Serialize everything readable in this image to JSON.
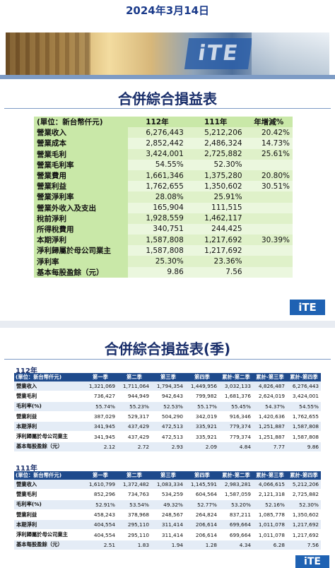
{
  "date": "2024年3月14日",
  "banner": {
    "logo_text": "iTE"
  },
  "annual": {
    "title": "合併綜合損益表",
    "header": [
      "(單位：新台幣仟元)",
      "112年",
      "111年",
      "年增減%"
    ],
    "rows": [
      [
        "營業收入",
        "6,276,443",
        "5,212,206",
        "20.42%"
      ],
      [
        "營業成本",
        "2,852,442",
        "2,486,324",
        "14.73%"
      ],
      [
        "營業毛利",
        "3,424,001",
        "2,725,882",
        "25.61%"
      ],
      [
        "營業毛利率",
        "54.55%",
        "52.30%",
        ""
      ],
      [
        "營業費用",
        "1,661,346",
        "1,375,280",
        "20.80%"
      ],
      [
        "營業利益",
        "1,762,655",
        "1,350,602",
        "30.51%"
      ],
      [
        "營業淨利率",
        "28.08%",
        "25.91%",
        ""
      ],
      [
        "營業外收入及支出",
        "165,904",
        "111,515",
        ""
      ],
      [
        "稅前淨利",
        "1,928,559",
        "1,462,117",
        ""
      ],
      [
        "所得稅費用",
        "340,751",
        "244,425",
        ""
      ],
      [
        "本期淨利",
        "1,587,808",
        "1,217,692",
        "30.39%"
      ],
      [
        "淨利歸屬於母公司業主",
        "1,587,808",
        "1,217,692",
        ""
      ],
      [
        "淨利率",
        "25.30%",
        "23.36%",
        ""
      ],
      [
        "基本每股盈餘（元）",
        "9.86",
        "7.56",
        ""
      ]
    ]
  },
  "logo_small": "iTE",
  "quarterly": {
    "title": "合併綜合損益表(季)",
    "header": [
      "(單位：新台幣仟元)",
      "第一季",
      "第二季",
      "第三季",
      "第四季",
      "累計-第二季",
      "累計-第三季",
      "累計-第四季"
    ],
    "y112": {
      "label": "112年",
      "rows": [
        [
          "營業收入",
          "1,321,069",
          "1,711,064",
          "1,794,354",
          "1,449,956",
          "3,032,133",
          "4,826,487",
          "6,276,443"
        ],
        [
          "營業毛利",
          "736,427",
          "944,949",
          "942,643",
          "799,982",
          "1,681,376",
          "2,624,019",
          "3,424,001"
        ],
        [
          "毛利率(%)",
          "55.74%",
          "55.23%",
          "52.53%",
          "55.17%",
          "55.45%",
          "54.37%",
          "54.55%"
        ],
        [
          "營業利益",
          "387,029",
          "529,317",
          "504,290",
          "342,019",
          "916,346",
          "1,420,636",
          "1,762,655"
        ],
        [
          "本期淨利",
          "341,945",
          "437,429",
          "472,513",
          "335,921",
          "779,374",
          "1,251,887",
          "1,587,808"
        ],
        [
          "淨利歸屬於母公司業主",
          "341,945",
          "437,429",
          "472,513",
          "335,921",
          "779,374",
          "1,251,887",
          "1,587,808"
        ],
        [
          "基本每股盈餘（元）",
          "2.12",
          "2.72",
          "2.93",
          "2.09",
          "4.84",
          "7.77",
          "9.86"
        ]
      ]
    },
    "y111": {
      "label": "111年",
      "rows": [
        [
          "營業收入",
          "1,610,799",
          "1,372,482",
          "1,083,334",
          "1,145,591",
          "2,983,281",
          "4,066,615",
          "5,212,206"
        ],
        [
          "營業毛利",
          "852,296",
          "734,763",
          "534,259",
          "604,564",
          "1,587,059",
          "2,121,318",
          "2,725,882"
        ],
        [
          "毛利率(%)",
          "52.91%",
          "53.54%",
          "49.32%",
          "52.77%",
          "53.20%",
          "52.16%",
          "52.30%"
        ],
        [
          "營業利益",
          "458,243",
          "378,968",
          "248,567",
          "264,824",
          "837,211",
          "1,085,778",
          "1,350,602"
        ],
        [
          "本期淨利",
          "404,554",
          "295,110",
          "311,414",
          "206,614",
          "699,664",
          "1,011,078",
          "1,217,692"
        ],
        [
          "淨利歸屬於母公司業主",
          "404,554",
          "295,110",
          "311,414",
          "206,614",
          "699,664",
          "1,011,078",
          "1,217,692"
        ],
        [
          "基本每股盈餘（元）",
          "2.51",
          "1.83",
          "1.94",
          "1.28",
          "4.34",
          "6.28",
          "7.56"
        ]
      ]
    }
  }
}
